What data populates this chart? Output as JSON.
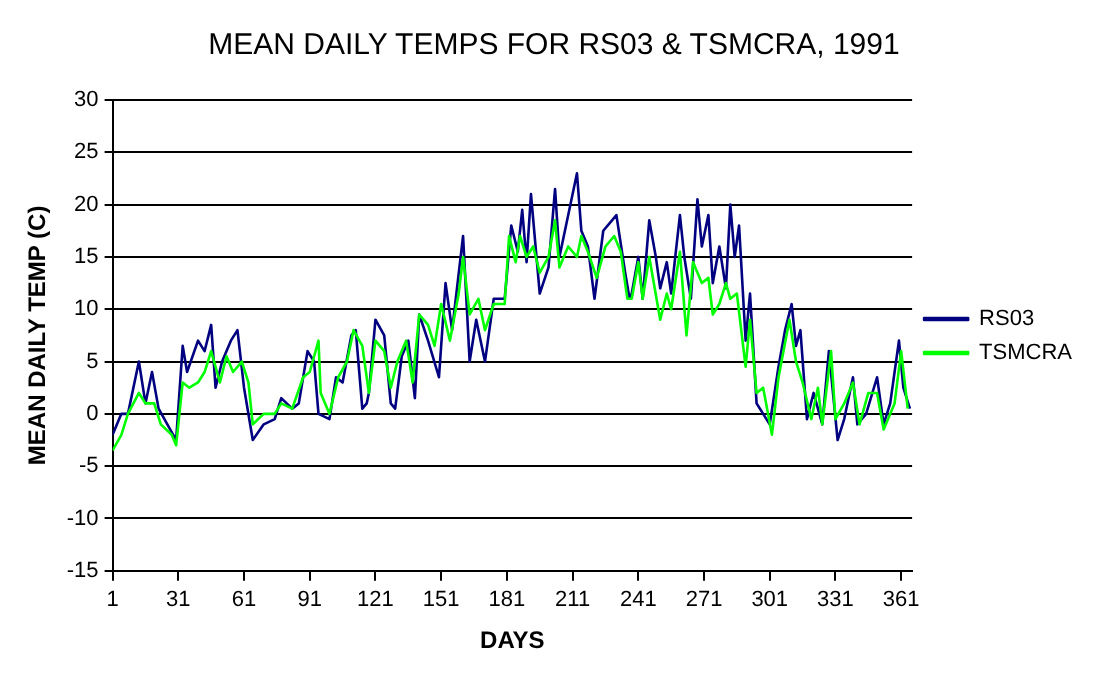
{
  "chart_data": {
    "type": "line",
    "title": "MEAN DAILY TEMPS FOR RS03 & TSMCRA, 1991",
    "xlabel": "DAYS",
    "ylabel": "MEAN DAILY TEMP (C)",
    "xlim": [
      1,
      366
    ],
    "xticks": [
      1,
      31,
      61,
      91,
      121,
      151,
      181,
      211,
      241,
      271,
      301,
      331,
      361
    ],
    "ylim": [
      -15,
      30
    ],
    "yticks": [
      -15,
      -10,
      -5,
      0,
      5,
      10,
      15,
      20,
      25,
      30
    ],
    "grid": "y",
    "legend": "right",
    "marker": "none",
    "line_style": "solid",
    "series": [
      {
        "name": "RS03",
        "color": "#000080",
        "x": [
          1,
          5,
          8,
          13,
          16,
          19,
          22,
          26,
          30,
          33,
          35,
          40,
          43,
          46,
          48,
          51,
          55,
          58,
          61,
          65,
          70,
          75,
          78,
          83,
          86,
          90,
          93,
          95,
          100,
          103,
          106,
          110,
          112,
          115,
          117,
          118,
          121,
          125,
          128,
          130,
          133,
          136,
          139,
          141,
          145,
          150,
          153,
          156,
          161,
          164,
          167,
          171,
          175,
          180,
          183,
          186,
          188,
          190,
          192,
          196,
          200,
          203,
          205,
          208,
          213,
          215,
          218,
          221,
          225,
          229,
          231,
          235,
          237,
          238,
          241,
          243,
          246,
          249,
          251,
          254,
          256,
          260,
          262,
          265,
          268,
          270,
          273,
          275,
          278,
          281,
          283,
          285,
          287,
          290,
          292,
          295,
          298,
          301,
          305,
          308,
          311,
          313,
          315,
          318,
          321,
          325,
          328,
          332,
          335,
          339,
          341,
          345,
          350,
          353,
          356,
          360,
          362,
          365
        ],
        "values": [
          -2,
          0,
          0,
          5,
          1,
          4,
          0.5,
          -1,
          -2.5,
          6.5,
          4,
          7,
          6,
          8.5,
          2.5,
          5,
          7,
          8,
          2.5,
          -2.5,
          -1,
          -0.5,
          1.5,
          0.5,
          1,
          6,
          5,
          0,
          -0.5,
          3.5,
          3,
          7.5,
          8,
          0.5,
          1,
          2,
          9,
          7.5,
          1,
          0.5,
          5.5,
          7,
          1.5,
          9.5,
          7,
          3.5,
          12.5,
          8,
          17,
          5,
          9,
          5,
          11,
          11,
          18,
          15.5,
          19.5,
          14.5,
          21,
          11.5,
          14,
          21.5,
          15,
          18,
          23,
          17.5,
          16,
          11,
          17.5,
          18.5,
          19,
          13.5,
          11,
          11.5,
          15,
          11,
          18.5,
          15,
          12,
          14.5,
          11.5,
          19,
          15,
          11,
          20.5,
          16,
          19,
          12.5,
          16,
          12,
          20,
          15,
          18,
          7,
          11.5,
          1,
          0,
          -1,
          4.5,
          8,
          10.5,
          6.5,
          8,
          -0.5,
          2,
          -1,
          6,
          -2.5,
          -0.5,
          3.5,
          -1,
          0,
          3.5,
          -1,
          1,
          7,
          2.5,
          0.5
        ]
      },
      {
        "name": "TSMCRA",
        "color": "#00ff00",
        "x": [
          1,
          5,
          8,
          13,
          16,
          20,
          23,
          28,
          30,
          33,
          36,
          40,
          43,
          46,
          50,
          53,
          56,
          60,
          63,
          65,
          70,
          75,
          78,
          83,
          88,
          91,
          95,
          96,
          100,
          104,
          108,
          111,
          115,
          118,
          121,
          125,
          128,
          131,
          135,
          138,
          141,
          145,
          148,
          151,
          155,
          159,
          161,
          164,
          168,
          171,
          175,
          180,
          182,
          185,
          187,
          190,
          193,
          196,
          200,
          203,
          205,
          209,
          213,
          215,
          218,
          222,
          226,
          230,
          233,
          236,
          238,
          241,
          243,
          246,
          251,
          254,
          256,
          260,
          263,
          266,
          270,
          273,
          275,
          278,
          281,
          283,
          286,
          290,
          292,
          295,
          298,
          302,
          305,
          310,
          313,
          316,
          320,
          323,
          325,
          329,
          331,
          335,
          339,
          342,
          346,
          350,
          353,
          358,
          361,
          364
        ],
        "values": [
          -3.5,
          -2,
          0,
          2,
          1,
          1,
          -1,
          -2,
          -3,
          3,
          2.5,
          3,
          4,
          6,
          3,
          5.5,
          4,
          5,
          3,
          -1,
          0,
          0,
          1,
          0.5,
          3.5,
          4,
          7,
          2,
          0,
          3.5,
          5,
          8,
          6.5,
          2,
          7,
          6,
          2.5,
          5,
          7,
          3,
          9.5,
          8.5,
          6.5,
          10.5,
          7,
          11.5,
          15,
          9.5,
          11,
          8,
          10.5,
          10.5,
          17,
          14.5,
          17,
          15,
          16,
          13.5,
          15,
          18.5,
          14,
          16,
          15,
          17,
          15.5,
          13,
          16,
          17,
          15.5,
          11,
          11,
          14.5,
          11,
          15,
          9,
          11.5,
          10,
          15.5,
          7.5,
          14.5,
          12.5,
          13,
          9.5,
          10.5,
          12.5,
          11,
          11.5,
          4.5,
          9,
          2,
          2.5,
          -2,
          3.5,
          9,
          5,
          3,
          -0.5,
          2.5,
          -1,
          6,
          -0.5,
          1,
          3,
          -1,
          2,
          2,
          -1.5,
          1,
          6,
          0.5
        ]
      }
    ]
  }
}
